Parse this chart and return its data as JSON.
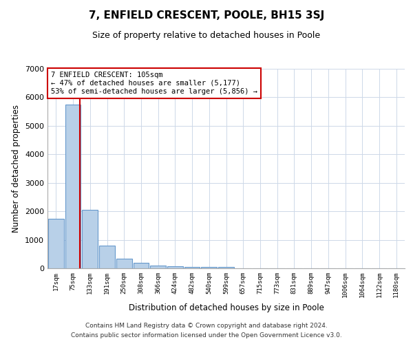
{
  "title": "7, ENFIELD CRESCENT, POOLE, BH15 3SJ",
  "subtitle": "Size of property relative to detached houses in Poole",
  "xlabel": "Distribution of detached houses by size in Poole",
  "ylabel": "Number of detached properties",
  "bin_labels": [
    "17sqm",
    "75sqm",
    "133sqm",
    "191sqm",
    "250sqm",
    "308sqm",
    "366sqm",
    "424sqm",
    "482sqm",
    "540sqm",
    "599sqm",
    "657sqm",
    "715sqm",
    "773sqm",
    "831sqm",
    "889sqm",
    "947sqm",
    "1006sqm",
    "1064sqm",
    "1122sqm",
    "1180sqm"
  ],
  "bar_values": [
    1750,
    5750,
    2050,
    800,
    350,
    200,
    100,
    70,
    55,
    55,
    50,
    0,
    0,
    0,
    0,
    0,
    0,
    0,
    0,
    0,
    0
  ],
  "bar_color": "#b8d0e8",
  "bar_edge_color": "#6699cc",
  "ylim": [
    0,
    7000
  ],
  "yticks": [
    0,
    1000,
    2000,
    3000,
    4000,
    5000,
    6000,
    7000
  ],
  "property_line_x": 1.4,
  "property_line_color": "#cc0000",
  "annotation_line1": "7 ENFIELD CRESCENT: 105sqm",
  "annotation_line2": "← 47% of detached houses are smaller (5,177)",
  "annotation_line3": "53% of semi-detached houses are larger (5,856) →",
  "annotation_box_color": "#ffffff",
  "annotation_box_edge_color": "#cc0000",
  "footer_line1": "Contains HM Land Registry data © Crown copyright and database right 2024.",
  "footer_line2": "Contains public sector information licensed under the Open Government Licence v3.0.",
  "background_color": "#ffffff",
  "grid_color": "#cdd8e8"
}
